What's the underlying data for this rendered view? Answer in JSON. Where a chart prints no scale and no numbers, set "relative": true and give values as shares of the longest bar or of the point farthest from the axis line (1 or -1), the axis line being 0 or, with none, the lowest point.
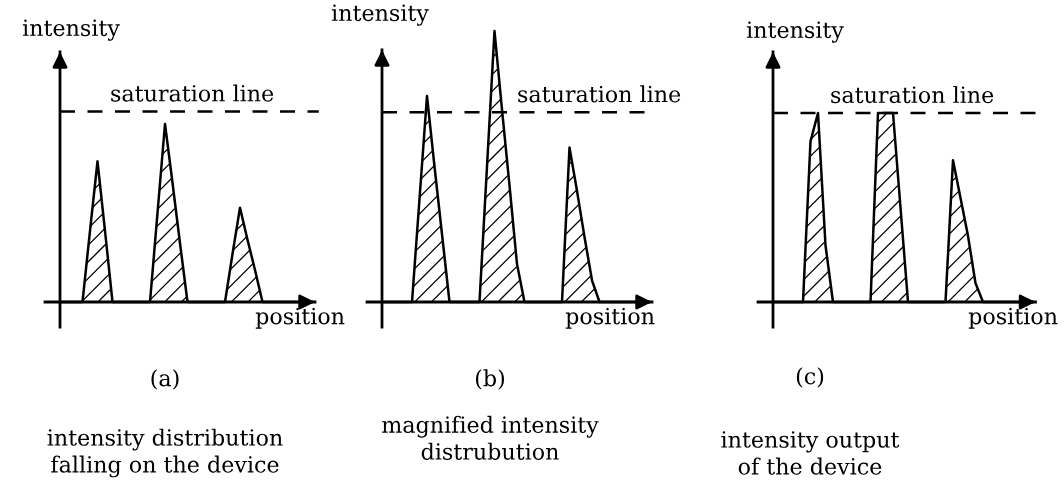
{
  "chart_data": [
    {
      "type": "area",
      "relative": true,
      "tick_labels": false,
      "xlabel": "position",
      "ylabel": "intensity",
      "categories": [
        null,
        null,
        null,
        null,
        null,
        null,
        null,
        null,
        null,
        null,
        null,
        null,
        null,
        null,
        null,
        null,
        null,
        null,
        null,
        null,
        null,
        null,
        null,
        null,
        null,
        null,
        null,
        null,
        null,
        null,
        null,
        null,
        null
      ],
      "series": [
        {
          "color": "#000000",
          "values": [
            0,
            0,
            0,
            0,
            0.4,
            0.79,
            0.4,
            0,
            0,
            0,
            0,
            0,
            0,
            0.5,
            1,
            0.67,
            0.33,
            0,
            0,
            0,
            0,
            0,
            0,
            0.27,
            0.53,
            0.35,
            0.18,
            0,
            0,
            0,
            0,
            0,
            0
          ]
        }
      ],
      "ref_lines": [
        {
          "axis": "y",
          "value": 1.07,
          "label": "saturation line",
          "color": "#000000",
          "line_style": "dashed"
        }
      ],
      "annotations": [
        "(a)",
        "intensity distribution\nfalling on the device"
      ]
    },
    {
      "type": "area",
      "relative": true,
      "tick_labels": false,
      "xlabel": "position",
      "ylabel": "intensity",
      "categories": [
        null,
        null,
        null,
        null,
        null,
        null,
        null,
        null,
        null,
        null,
        null,
        null,
        null,
        null,
        null,
        null,
        null,
        null,
        null,
        null,
        null,
        null,
        null,
        null,
        null,
        null,
        null,
        null,
        null,
        null,
        null,
        null,
        null,
        null,
        null
      ],
      "series": [
        {
          "color": "#000000",
          "values": [
            0,
            0,
            0,
            0,
            0,
            0.38,
            0.76,
            0.5,
            0.25,
            0,
            0,
            0,
            0,
            0,
            0.5,
            1,
            0.71,
            0.43,
            0.14,
            0,
            0,
            0,
            0,
            0,
            0,
            0.57,
            0.41,
            0.24,
            0.08,
            0,
            0,
            0,
            0,
            0,
            0
          ]
        }
      ],
      "ref_lines": [
        {
          "axis": "y",
          "value": 0.7,
          "label": "saturation line",
          "color": "#000000",
          "line_style": "dashed"
        }
      ],
      "annotations": [
        "(b)",
        "magnified intensity\ndistrubution"
      ]
    },
    {
      "type": "area",
      "relative": true,
      "tick_labels": false,
      "xlabel": "position",
      "ylabel": "intensity",
      "categories": [
        null,
        null,
        null,
        null,
        null,
        null,
        null,
        null,
        null,
        null,
        null,
        null,
        null,
        null,
        null,
        null,
        null,
        null,
        null,
        null,
        null,
        null,
        null,
        null,
        null,
        null,
        null,
        null,
        null,
        null,
        null,
        null,
        null,
        null
      ],
      "series": [
        {
          "color": "#000000",
          "values": [
            0,
            0,
            0,
            0,
            0,
            0.85,
            1,
            0.3,
            0,
            0,
            0,
            0,
            0,
            0,
            1,
            1,
            1,
            0.5,
            0,
            0,
            0,
            0,
            0,
            0,
            0.75,
            0.55,
            0.35,
            0.1,
            0,
            0,
            0,
            0,
            0,
            0
          ]
        }
      ],
      "ref_lines": [
        {
          "axis": "y",
          "value": 1,
          "label": "saturation line",
          "color": "#000000",
          "line_style": "dashed"
        }
      ],
      "annotations": [
        "(c)",
        "intensity output\nof the device"
      ]
    }
  ]
}
